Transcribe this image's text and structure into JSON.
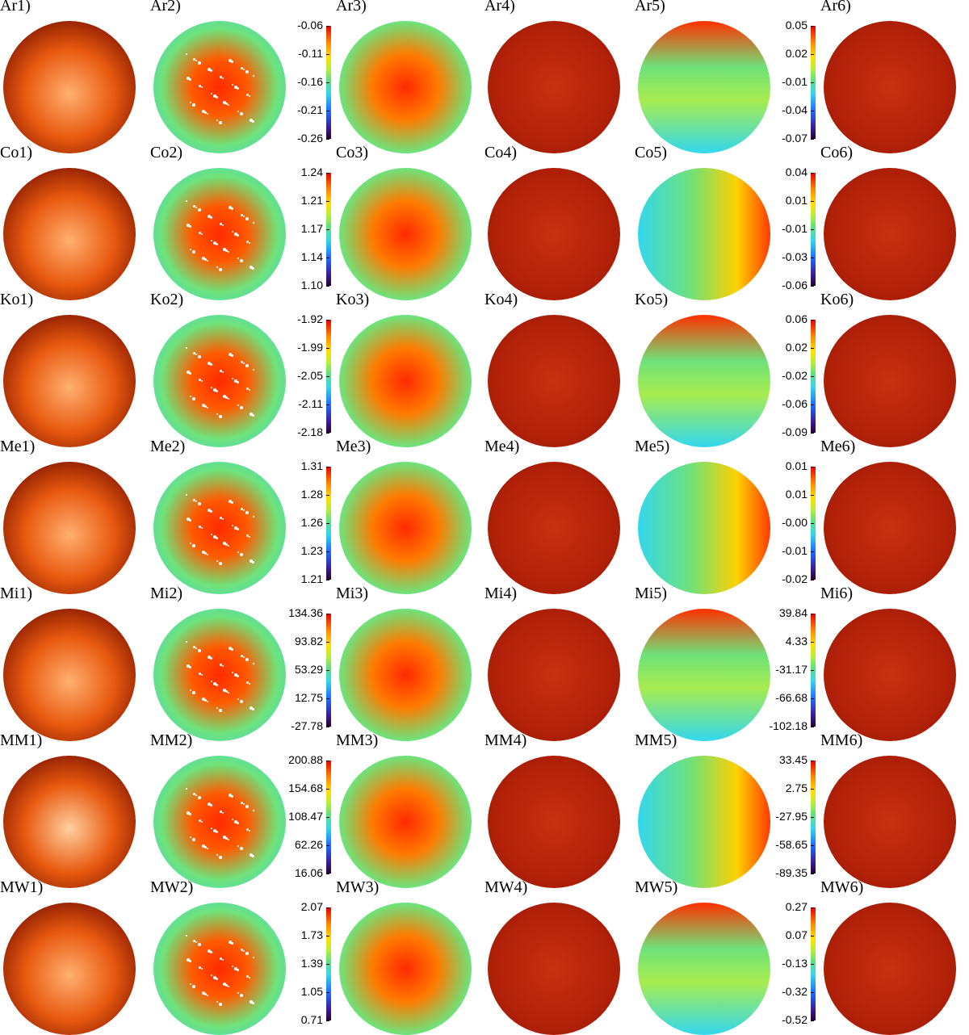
{
  "figure": {
    "rows": [
      {
        "prefix": "Ar",
        "labels": [
          "Ar1)",
          "Ar2)",
          "Ar3)",
          "Ar4)",
          "Ar5)",
          "Ar6)"
        ],
        "cbar_a": [
          "-0.06",
          "-0.11",
          "-0.16",
          "-0.21",
          "-0.26"
        ],
        "cbar_b": [
          "0.05",
          "0.02",
          "-0.01",
          "-0.04",
          "-0.07"
        ]
      },
      {
        "prefix": "Co",
        "labels": [
          "Co1)",
          "Co2)",
          "Co3)",
          "Co4)",
          "Co5)",
          "Co6)"
        ],
        "cbar_a": [
          "1.24",
          "1.21",
          "1.17",
          "1.14",
          "1.10"
        ],
        "cbar_b": [
          "0.04",
          "0.01",
          "-0.01",
          "-0.03",
          "-0.06"
        ]
      },
      {
        "prefix": "Ko",
        "labels": [
          "Ko1)",
          "Ko2)",
          "Ko3)",
          "Ko4)",
          "Ko5)",
          "Ko6)"
        ],
        "cbar_a": [
          "-1.92",
          "-1.99",
          "-2.05",
          "-2.11",
          "-2.18"
        ],
        "cbar_b": [
          "0.06",
          "0.02",
          "-0.02",
          "-0.06",
          "-0.09"
        ]
      },
      {
        "prefix": "Me",
        "labels": [
          "Me1)",
          "Me2)",
          "Me3)",
          "Me4)",
          "Me5)",
          "Me6)"
        ],
        "cbar_a": [
          "1.31",
          "1.28",
          "1.26",
          "1.23",
          "1.21"
        ],
        "cbar_b": [
          "0.01",
          "0.01",
          "-0.00",
          "-0.01",
          "-0.02"
        ]
      },
      {
        "prefix": "Mi",
        "labels": [
          "Mi1)",
          "Mi2)",
          "Mi3)",
          "Mi4)",
          "Mi5)",
          "Mi6)"
        ],
        "cbar_a": [
          "134.36",
          "93.82",
          "53.29",
          "12.75",
          "-27.78"
        ],
        "cbar_b": [
          "39.84",
          "4.33",
          "-31.17",
          "-66.68",
          "-102.18"
        ]
      },
      {
        "prefix": "MM",
        "labels": [
          "MM1)",
          "MM2)",
          "MM3)",
          "MM4)",
          "MM5)",
          "MM6)"
        ],
        "cbar_a": [
          "200.88",
          "154.68",
          "108.47",
          "62.26",
          "16.06"
        ],
        "cbar_b": [
          "33.45",
          "2.75",
          "-27.95",
          "-58.65",
          "-89.35"
        ]
      },
      {
        "prefix": "MW",
        "labels": [
          "MW1)",
          "MW2)",
          "MW3)",
          "MW4)",
          "MW5)",
          "MW6)"
        ],
        "cbar_a": [
          "2.07",
          "1.73",
          "1.39",
          "1.05",
          "0.71"
        ],
        "cbar_b": [
          "0.27",
          "0.07",
          "-0.13",
          "-0.32",
          "-0.52"
        ]
      }
    ],
    "colors": {
      "col1": [
        "#ffb070",
        "#e85a10",
        "#8a1a00",
        "#2a0500"
      ],
      "col4": [
        "#c83010",
        "#b02008",
        "#8a1500"
      ],
      "col6": [
        "#c83010",
        "#b02008",
        "#8a1500"
      ],
      "map_low": "#33d7ee",
      "map_mid": "#6fe27a",
      "map_high": "#ff2a00"
    }
  }
}
